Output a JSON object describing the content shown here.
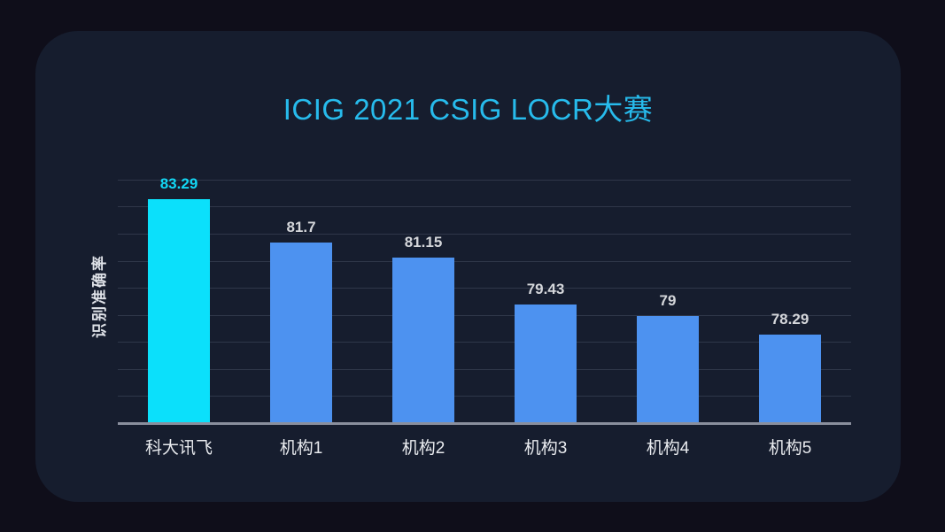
{
  "page": {
    "background": "#0f0e1a",
    "card_background": "#161d2e"
  },
  "chart_data": {
    "type": "bar",
    "title": "ICIG 2021 CSIG LOCR大赛",
    "xlabel": "",
    "ylabel": "识别准确率",
    "categories": [
      "科大讯飞",
      "机构1",
      "机构2",
      "机构3",
      "机构4",
      "机构5"
    ],
    "values": [
      83.29,
      81.7,
      81.15,
      79.43,
      79,
      78.29
    ],
    "value_labels": [
      "83.29",
      "81.7",
      "81.15",
      "79.43",
      "79",
      "78.29"
    ],
    "ylim": [
      75,
      84.45
    ],
    "gridline_step": 1,
    "grid": true,
    "legend_position": "none",
    "y_tick_labels_visible": false,
    "highlight_index": 0,
    "colors": {
      "highlight_bar": "#0be0fb",
      "default_bar": "#4d92f0",
      "highlight_value_label": "#12d8f5",
      "default_value_label": "#d4d6da",
      "title": "#27bbec",
      "gridline": "#2f3749",
      "axis_line": "#8a8f9d",
      "category_label": "#e9ebef",
      "ylabel_color": "#dfe2e8"
    }
  }
}
